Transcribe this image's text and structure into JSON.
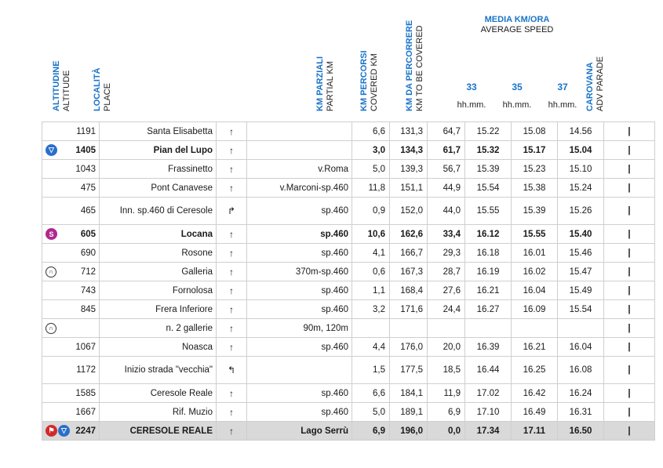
{
  "headers": {
    "altitudine": "ALTITUDINE",
    "altitude": "ALTITUDE",
    "localita": "LOCALITÀ",
    "place": "PLACE",
    "km_parziali": "KM PARZIALI",
    "partial_km": "PARTIAL KM",
    "km_percorsi": "KM PERCORSI",
    "covered_km": "COVERED KM",
    "km_da_percorrere": "KM DA PERCORRERE",
    "km_to_be_covered": "KM TO BE COVERED",
    "media": "MEDIA KM/ORA",
    "average_speed": "AVERAGE SPEED",
    "speed1": "33",
    "speed2": "35",
    "speed3": "37",
    "hhmm": "hh.mm.",
    "carovana": "CAROVANA",
    "adv_parade": "ADV PARADE"
  },
  "rows": [
    {
      "alt": "1191",
      "place": "Santa Elisabetta",
      "arrow": "↑",
      "road": "",
      "partial": "6,6",
      "covered": "131,3",
      "remaining": "64,7",
      "t33": "15.22",
      "t35": "15.08",
      "t37": "14.56",
      "car": "|",
      "icons": [],
      "style": ""
    },
    {
      "alt": "1405",
      "place": "Pian del Lupo",
      "arrow": "↑",
      "road": "",
      "partial": "3,0",
      "covered": "134,3",
      "remaining": "61,7",
      "t33": "15.32",
      "t35": "15.17",
      "t37": "15.04",
      "car": "|",
      "icons": [
        "gpm"
      ],
      "style": "bold"
    },
    {
      "alt": "1043",
      "place": "Frassinetto",
      "arrow": "↑",
      "road": "v.Roma",
      "partial": "5,0",
      "covered": "139,3",
      "remaining": "56,7",
      "t33": "15.39",
      "t35": "15.23",
      "t37": "15.10",
      "car": "|",
      "icons": [],
      "style": ""
    },
    {
      "alt": "475",
      "place": "Pont Canavese",
      "arrow": "↑",
      "road": "v.Marconi-sp.460",
      "partial": "11,8",
      "covered": "151,1",
      "remaining": "44,9",
      "t33": "15.54",
      "t35": "15.38",
      "t37": "15.24",
      "car": "|",
      "icons": [],
      "style": ""
    },
    {
      "alt": "465",
      "place": "Inn. sp.460 di Ceresole",
      "arrow": "↱",
      "road": "sp.460",
      "partial": "0,9",
      "covered": "152,0",
      "remaining": "44,0",
      "t33": "15.55",
      "t35": "15.39",
      "t37": "15.26",
      "car": "|",
      "icons": [],
      "style": "tall"
    },
    {
      "alt": "605",
      "place": "Locana",
      "arrow": "↑",
      "road": "sp.460",
      "partial": "10,6",
      "covered": "162,6",
      "remaining": "33,4",
      "t33": "16.12",
      "t35": "15.55",
      "t37": "15.40",
      "car": "|",
      "icons": [
        "sprint"
      ],
      "style": "bold"
    },
    {
      "alt": "690",
      "place": "Rosone",
      "arrow": "↑",
      "road": "sp.460",
      "partial": "4,1",
      "covered": "166,7",
      "remaining": "29,3",
      "t33": "16.18",
      "t35": "16.01",
      "t37": "15.46",
      "car": "|",
      "icons": [],
      "style": ""
    },
    {
      "alt": "712",
      "place": "Galleria",
      "arrow": "↑",
      "road": "370m-sp.460",
      "partial": "0,6",
      "covered": "167,3",
      "remaining": "28,7",
      "t33": "16.19",
      "t35": "16.02",
      "t37": "15.47",
      "car": "|",
      "icons": [
        "tunnel"
      ],
      "style": ""
    },
    {
      "alt": "743",
      "place": "Fornolosa",
      "arrow": "↑",
      "road": "sp.460",
      "partial": "1,1",
      "covered": "168,4",
      "remaining": "27,6",
      "t33": "16.21",
      "t35": "16.04",
      "t37": "15.49",
      "car": "|",
      "icons": [],
      "style": ""
    },
    {
      "alt": "845",
      "place": "Frera Inferiore",
      "arrow": "↑",
      "road": "sp.460",
      "partial": "3,2",
      "covered": "171,6",
      "remaining": "24,4",
      "t33": "16.27",
      "t35": "16.09",
      "t37": "15.54",
      "car": "|",
      "icons": [],
      "style": ""
    },
    {
      "alt": "",
      "place": "n. 2 gallerie",
      "arrow": "↑",
      "road": "90m, 120m",
      "partial": "",
      "covered": "",
      "remaining": "",
      "t33": "",
      "t35": "",
      "t37": "",
      "car": "|",
      "icons": [
        "tunnel"
      ],
      "style": ""
    },
    {
      "alt": "1067",
      "place": "Noasca",
      "arrow": "↑",
      "road": "sp.460",
      "partial": "4,4",
      "covered": "176,0",
      "remaining": "20,0",
      "t33": "16.39",
      "t35": "16.21",
      "t37": "16.04",
      "car": "|",
      "icons": [],
      "style": ""
    },
    {
      "alt": "1172",
      "place": "Inizio strada \"vecchia\"",
      "arrow": "↰",
      "road": "",
      "partial": "1,5",
      "covered": "177,5",
      "remaining": "18,5",
      "t33": "16.44",
      "t35": "16.25",
      "t37": "16.08",
      "car": "|",
      "icons": [],
      "style": "tall"
    },
    {
      "alt": "1585",
      "place": "Ceresole Reale",
      "arrow": "↑",
      "road": "sp.460",
      "partial": "6,6",
      "covered": "184,1",
      "remaining": "11,9",
      "t33": "17.02",
      "t35": "16.42",
      "t37": "16.24",
      "car": "|",
      "icons": [],
      "style": ""
    },
    {
      "alt": "1667",
      "place": "Rif. Muzio",
      "arrow": "↑",
      "road": "sp.460",
      "partial": "5,0",
      "covered": "189,1",
      "remaining": "6,9",
      "t33": "17.10",
      "t35": "16.49",
      "t37": "16.31",
      "car": "|",
      "icons": [],
      "style": ""
    },
    {
      "alt": "2247",
      "place": "CERESOLE REALE",
      "arrow": "↑",
      "road": "Lago Serrù",
      "partial": "6,9",
      "covered": "196,0",
      "remaining": "0,0",
      "t33": "17.34",
      "t35": "17.11",
      "t37": "16.50",
      "car": "|",
      "icons": [
        "arrivo",
        "gpm"
      ],
      "style": "final"
    }
  ]
}
